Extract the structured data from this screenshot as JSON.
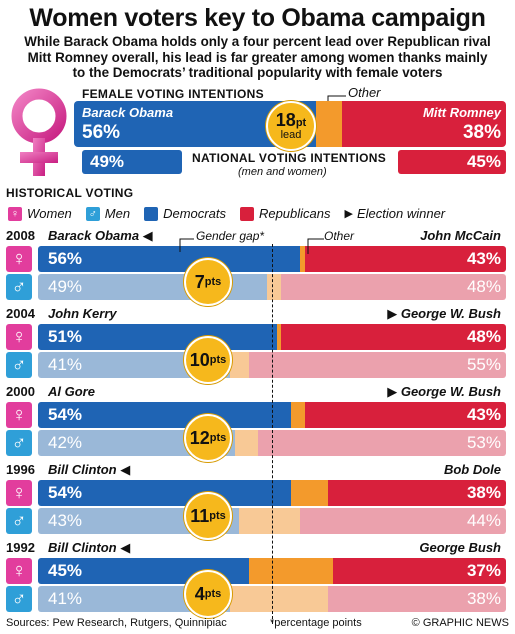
{
  "title": "Women voters key to Obama campaign",
  "subtitle": [
    "While Barack Obama holds only a four percent lead over Republican rival",
    "Mitt Romney overall, his lead is far greater among women thanks mainly",
    "to the Democrats’ traditional popularity with female voters"
  ],
  "colors": {
    "democrat": "#1f64b4",
    "democrat_light": "#9ab8d8",
    "republican": "#d8203c",
    "republican_light": "#eba1ad",
    "other": "#f39a2c",
    "other_light": "#f8c996",
    "women": "#e23d9d",
    "men": "#2f9fd8",
    "gap": "#f6b81c"
  },
  "icons": {
    "women": "female-symbol-icon",
    "men": "male-symbol-icon",
    "winner": "triangle-pointer-icon"
  },
  "female_intentions": {
    "heading": "FEMALE VOTING INTENTIONS",
    "dem_name": "Barack Obama",
    "dem_pct_label": "56%",
    "rep_name": "Mitt Romney",
    "rep_pct_label": "38%",
    "other_label": "Other",
    "lead_number": "18",
    "lead_unit": "pt",
    "lead_word": "lead",
    "dem": 56,
    "other": 6,
    "rep": 38
  },
  "national_intentions": {
    "heading": "NATIONAL VOTING INTENTIONS",
    "subheading": "(men and women)",
    "dem_pct_label": "49%",
    "rep_pct_label": "45%"
  },
  "historical": {
    "heading": "HISTORICAL VOTING",
    "legend": {
      "women": "Women",
      "men": "Men",
      "democrats": "Democrats",
      "republicans": "Republicans",
      "winner": "Election winner"
    },
    "gender_gap_label": "Gender gap*",
    "other_label": "Other",
    "unit": "pts"
  },
  "chart_data": {
    "type": "bar",
    "stacked": true,
    "orientation": "horizontal",
    "title": "Women voters key to Obama campaign",
    "series_order": [
      "Democrats",
      "Other",
      "Republicans"
    ],
    "elections": [
      {
        "year": "2008",
        "dem_name": "Barack Obama",
        "rep_name": "John McCain",
        "winner": "dem",
        "women": {
          "dem": 56,
          "rep": 43,
          "dem_label": "56%",
          "rep_label": "43%"
        },
        "men": {
          "dem": 49,
          "rep": 48,
          "dem_label": "49%",
          "rep_label": "48%"
        },
        "gap": "7"
      },
      {
        "year": "2004",
        "dem_name": "John Kerry",
        "rep_name": "George W. Bush",
        "winner": "rep",
        "women": {
          "dem": 51,
          "rep": 48,
          "dem_label": "51%",
          "rep_label": "48%"
        },
        "men": {
          "dem": 41,
          "rep": 55,
          "dem_label": "41%",
          "rep_label": "55%"
        },
        "gap": "10"
      },
      {
        "year": "2000",
        "dem_name": "Al Gore",
        "rep_name": "George W. Bush",
        "winner": "rep",
        "women": {
          "dem": 54,
          "rep": 43,
          "dem_label": "54%",
          "rep_label": "43%"
        },
        "men": {
          "dem": 42,
          "rep": 53,
          "dem_label": "42%",
          "rep_label": "53%"
        },
        "gap": "12"
      },
      {
        "year": "1996",
        "dem_name": "Bill Clinton",
        "rep_name": "Bob Dole",
        "winner": "dem",
        "women": {
          "dem": 54,
          "rep": 38,
          "dem_label": "54%",
          "rep_label": "38%"
        },
        "men": {
          "dem": 43,
          "rep": 44,
          "dem_label": "43%",
          "rep_label": "44%"
        },
        "gap": "11"
      },
      {
        "year": "1992",
        "dem_name": "Bill Clinton",
        "rep_name": "George Bush",
        "winner": "dem",
        "women": {
          "dem": 45,
          "rep": 37,
          "dem_label": "45%",
          "rep_label": "37%"
        },
        "men": {
          "dem": 41,
          "rep": 38,
          "dem_label": "41%",
          "rep_label": "38%"
        },
        "gap": "4"
      }
    ]
  },
  "footer": {
    "sources": "Sources: Pew Research, Rutgers, Quinnipiac",
    "note": "*percentage points",
    "credit": "© GRAPHIC NEWS"
  }
}
